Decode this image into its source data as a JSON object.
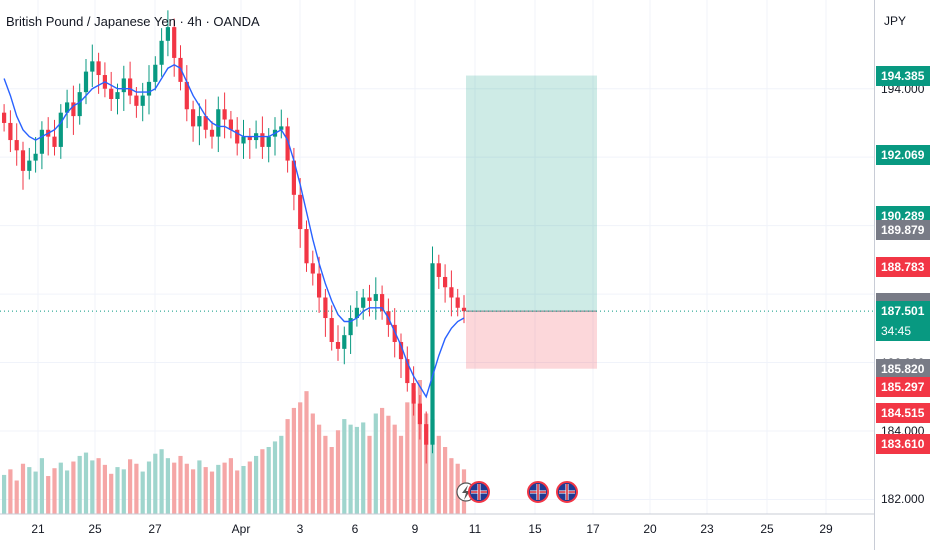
{
  "chart_data": {
    "type": "candlestick",
    "title": "British Pound / Japanese Yen · 4h · OANDA",
    "currency": "JPY",
    "y_ticks": [
      "194.000",
      "192.000",
      "186.000",
      "184.000",
      "182.000"
    ],
    "x_ticks": [
      "21",
      "25",
      "27",
      "Apr",
      "3",
      "6",
      "9",
      "11",
      "15",
      "17",
      "20",
      "23",
      "25",
      "29"
    ],
    "price_badges": [
      {
        "label": "194.385",
        "value": 194.385,
        "color": "#089981"
      },
      {
        "label": "192.069",
        "value": 192.069,
        "color": "#089981"
      },
      {
        "label": "190.289",
        "value": 190.289,
        "color": "#089981"
      },
      {
        "label": "189.879",
        "value": 189.879,
        "color": "#787b86"
      },
      {
        "label": "188.783",
        "value": 188.783,
        "color": "#f23645"
      },
      {
        "label": "187.748",
        "value": 187.748,
        "color": "#787b86"
      },
      {
        "label": "187.617",
        "value": 187.617,
        "color": "#787b86"
      },
      {
        "label": "187.501",
        "value": 187.501,
        "color": "#089981"
      },
      {
        "label": "185.820",
        "value": 185.82,
        "color": "#787b86"
      },
      {
        "label": "185.297",
        "value": 185.297,
        "color": "#f23645"
      },
      {
        "label": "184.515",
        "value": 184.515,
        "color": "#f23645"
      },
      {
        "label": "183.610",
        "value": 183.61,
        "color": "#f23645"
      }
    ],
    "countdown": "34:45",
    "last_price": 187.501,
    "position": {
      "entry": 187.501,
      "target": 194.385,
      "stop": 185.82
    },
    "series": [
      {
        "name": "close",
        "values": [
          193.0,
          192.5,
          192.2,
          191.6,
          191.9,
          192.1,
          192.8,
          192.6,
          192.3,
          193.3,
          193.6,
          193.2,
          193.9,
          194.5,
          194.8,
          194.4,
          194.0,
          193.7,
          193.9,
          194.3,
          193.8,
          193.5,
          193.8,
          194.2,
          194.7,
          195.4,
          195.8,
          194.9,
          194.2,
          193.4,
          192.9,
          193.2,
          192.8,
          192.6,
          193.4,
          193.1,
          192.8,
          192.4,
          192.6,
          192.5,
          192.7,
          192.3,
          192.6,
          192.8,
          192.9,
          191.9,
          190.9,
          189.9,
          188.9,
          188.6,
          187.9,
          187.3,
          186.6,
          186.4,
          186.8,
          187.3,
          187.6,
          187.9,
          187.8,
          188.0,
          187.5,
          187.1,
          186.6,
          186.1,
          185.4,
          184.8,
          184.2,
          183.6,
          188.9,
          188.5,
          188.2,
          187.9,
          187.6,
          187.5
        ]
      },
      {
        "name": "moving-average",
        "values": [
          194.3,
          193.8,
          193.2,
          192.8,
          192.6,
          192.5,
          192.6,
          192.7,
          192.8,
          193.0,
          193.3,
          193.5,
          193.6,
          193.8,
          194.0,
          194.1,
          194.2,
          194.1,
          194.0,
          194.0,
          194.0,
          193.9,
          193.9,
          193.9,
          194.0,
          194.3,
          194.6,
          194.7,
          194.6,
          194.2,
          193.8,
          193.5,
          193.2,
          193.0,
          192.9,
          192.9,
          192.8,
          192.7,
          192.6,
          192.6,
          192.6,
          192.6,
          192.6,
          192.7,
          192.8,
          192.5,
          191.9,
          191.2,
          190.4,
          189.6,
          188.9,
          188.3,
          187.8,
          187.4,
          187.2,
          187.2,
          187.3,
          187.5,
          187.6,
          187.6,
          187.6,
          187.3,
          186.9,
          186.5,
          186.0,
          185.6,
          185.3,
          185.0,
          185.6,
          186.2,
          186.7,
          187.0,
          187.2,
          187.3
        ]
      }
    ],
    "volume": [
      35,
      40,
      30,
      45,
      42,
      38,
      50,
      34,
      41,
      46,
      39,
      47,
      52,
      55,
      48,
      50,
      44,
      36,
      42,
      40,
      49,
      45,
      38,
      47,
      54,
      58,
      50,
      46,
      52,
      45,
      40,
      48,
      42,
      38,
      44,
      46,
      50,
      39,
      43,
      47,
      52,
      58,
      60,
      65,
      70,
      85,
      95,
      100,
      110,
      90,
      80,
      70,
      60,
      75,
      85,
      80,
      78,
      82,
      70,
      90,
      95,
      88,
      80,
      70,
      100,
      110,
      120,
      90,
      85,
      70,
      60,
      50,
      45,
      40
    ],
    "volume_max": 120,
    "ylim": [
      181.75,
      196.3
    ]
  },
  "icons": [
    "flash-icon",
    "uk-flag-icon",
    "uk-flag-icon",
    "uk-flag-icon",
    "uk-flag-icon"
  ]
}
